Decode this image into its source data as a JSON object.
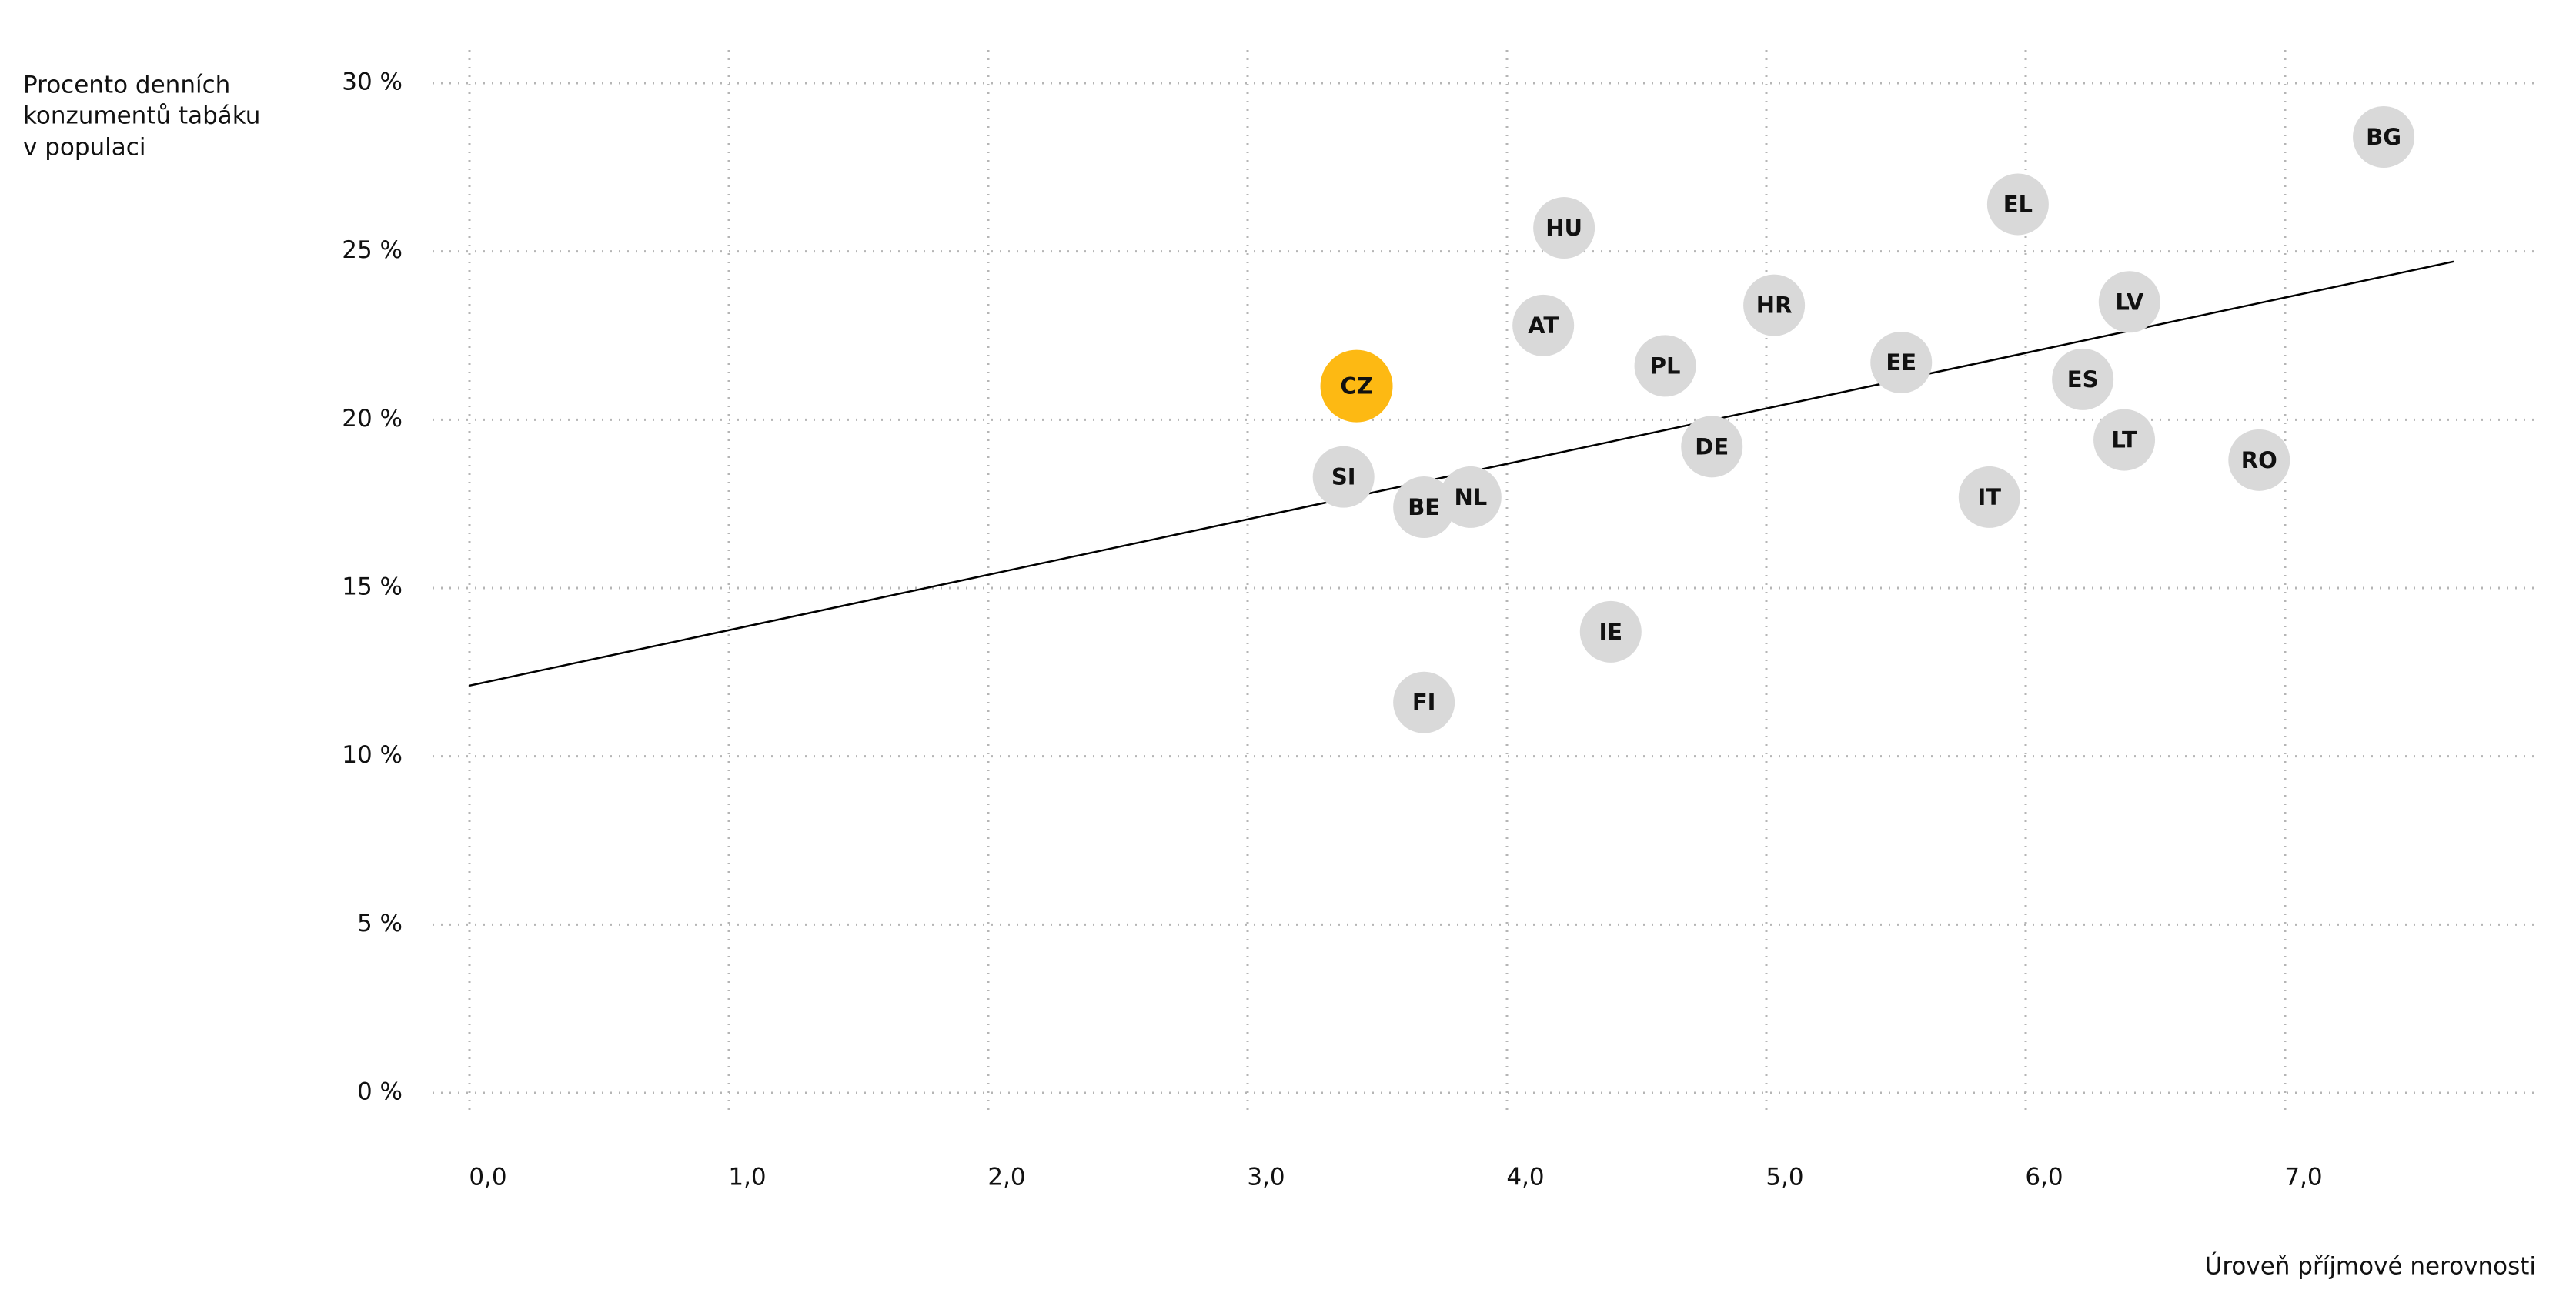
{
  "chart_data": {
    "type": "scatter",
    "y_label": [
      "Procento denních",
      "konzumentů tabáku",
      "v populaci"
    ],
    "x_label": "Úroveň příjmové nerovnosti",
    "labels": [
      "CZ",
      "SI",
      "BE",
      "NL",
      "FI",
      "AT",
      "HU",
      "PL",
      "IE",
      "DE",
      "HR",
      "EE",
      "IT",
      "EL",
      "ES",
      "LV",
      "LT",
      "RO",
      "BG"
    ],
    "x": [
      3.42,
      3.37,
      3.68,
      3.86,
      3.68,
      4.14,
      4.22,
      4.61,
      4.4,
      4.79,
      5.03,
      5.52,
      5.86,
      5.97,
      6.22,
      6.4,
      6.38,
      6.9,
      7.38
    ],
    "values": [
      21.0,
      18.3,
      17.4,
      17.7,
      11.6,
      22.8,
      25.7,
      21.6,
      13.7,
      19.2,
      23.4,
      21.7,
      17.7,
      26.4,
      21.2,
      23.5,
      19.4,
      18.8,
      28.4
    ],
    "colors": [
      "#fdb913",
      "#d9d9d9",
      "#d9d9d9",
      "#d9d9d9",
      "#d9d9d9",
      "#d9d9d9",
      "#d9d9d9",
      "#d9d9d9",
      "#d9d9d9",
      "#d9d9d9",
      "#d9d9d9",
      "#d9d9d9",
      "#d9d9d9",
      "#d9d9d9",
      "#d9d9d9",
      "#d9d9d9",
      "#d9d9d9",
      "#d9d9d9",
      "#d9d9d9"
    ],
    "trendline": {
      "x": [
        0,
        7.65
      ],
      "y": [
        12.1,
        24.7
      ],
      "color": "#000000"
    },
    "xlim": [
      0,
      8
    ],
    "ylim": [
      0,
      30
    ],
    "xticks": [
      {
        "value": 0,
        "label": "0,0"
      },
      {
        "value": 1,
        "label": "1,0"
      },
      {
        "value": 2,
        "label": "2,0"
      },
      {
        "value": 3,
        "label": "3,0"
      },
      {
        "value": 4,
        "label": "4,0"
      },
      {
        "value": 5,
        "label": "5,0"
      },
      {
        "value": 6,
        "label": "6,0"
      },
      {
        "value": 7,
        "label": "7,0"
      }
    ],
    "yticks": [
      {
        "value": 0,
        "label": "0 %"
      },
      {
        "value": 5,
        "label": "5 %"
      },
      {
        "value": 10,
        "label": "10 %"
      },
      {
        "value": 15,
        "label": "15 %"
      },
      {
        "value": 20,
        "label": "20 %"
      },
      {
        "value": 25,
        "label": "25 %"
      },
      {
        "value": 30,
        "label": "30 %"
      }
    ],
    "grid": true
  }
}
